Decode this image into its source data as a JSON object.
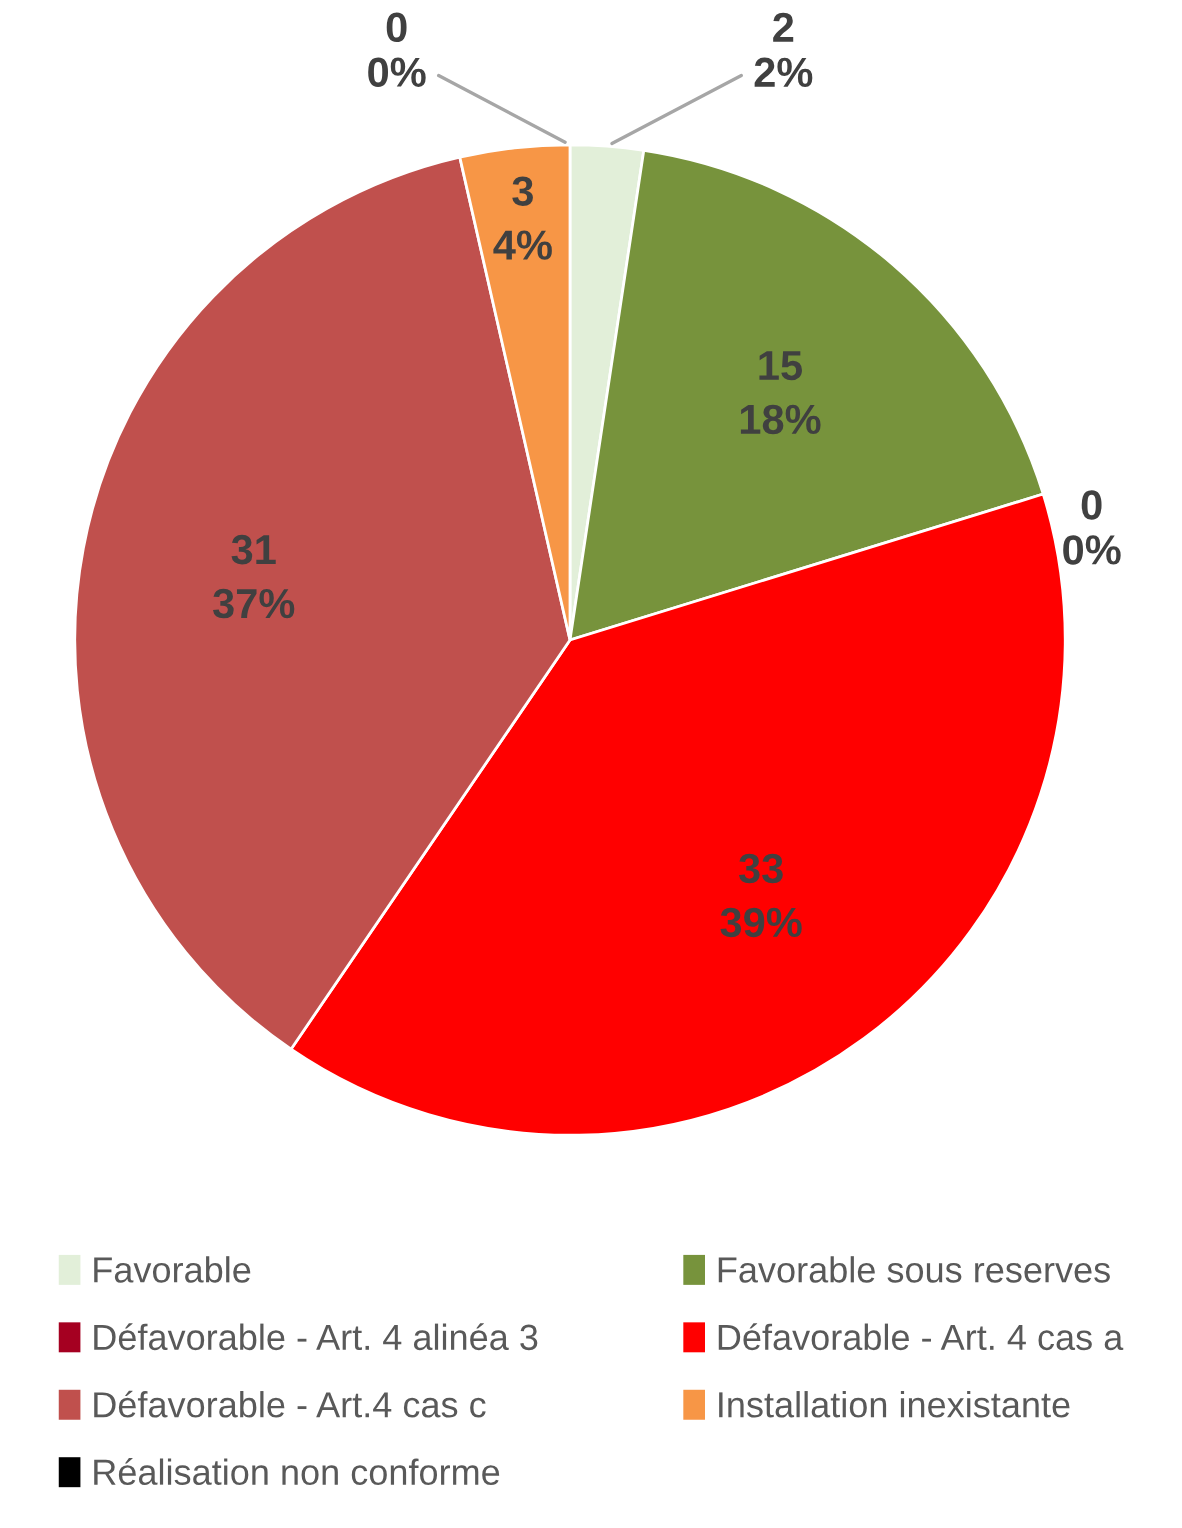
{
  "chart_data": {
    "type": "pie",
    "categories": [
      "Favorable",
      "Favorable sous reserves",
      "Défavorable - Art. 4 alinéa 3",
      "Défavorable - Art. 4 cas a",
      "Défavorable - Art.4 cas c",
      "Installation inexistante",
      "Réalisation non conforme"
    ],
    "values": [
      2,
      15,
      0,
      33,
      31,
      3,
      0
    ],
    "value_labels": [
      "2\n2%",
      "15\n18%",
      "0\n0%",
      "33\n39%",
      "31\n37%",
      "3\n4%",
      "0\n0%"
    ],
    "colors": [
      "#e2efd9",
      "#77933c",
      "#a50021",
      "#ff0000",
      "#c0504d",
      "#f79646",
      "#000000"
    ],
    "legend": "bottom"
  }
}
